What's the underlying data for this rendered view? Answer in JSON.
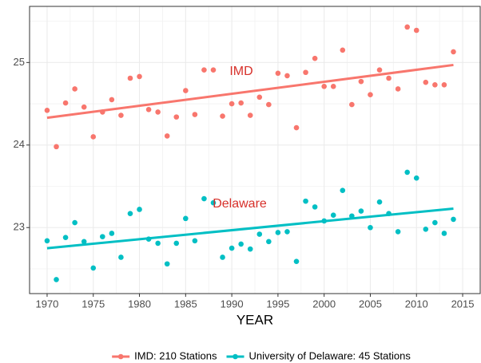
{
  "chart_data": {
    "type": "scatter",
    "xlabel": "YEAR",
    "x": [
      1970,
      1971,
      1972,
      1973,
      1974,
      1975,
      1976,
      1977,
      1978,
      1979,
      1980,
      1981,
      1982,
      1983,
      1984,
      1985,
      1986,
      1987,
      1988,
      1989,
      1990,
      1991,
      1992,
      1993,
      1994,
      1995,
      1996,
      1997,
      1998,
      1999,
      2000,
      2001,
      2002,
      2003,
      2004,
      2005,
      2006,
      2007,
      2008,
      2009,
      2010,
      2011,
      2012,
      2013,
      2014
    ],
    "series": [
      {
        "name": "IMD: 210 Stations",
        "color": "#f8766d",
        "values": [
          24.42,
          23.98,
          24.51,
          24.68,
          24.46,
          24.1,
          24.4,
          24.55,
          24.36,
          24.81,
          24.83,
          24.43,
          24.4,
          24.11,
          24.34,
          24.66,
          24.37,
          24.91,
          24.91,
          24.35,
          24.5,
          24.51,
          24.36,
          24.58,
          24.49,
          24.87,
          24.84,
          24.21,
          24.88,
          25.05,
          24.71,
          24.71,
          25.15,
          24.49,
          24.77,
          24.61,
          24.91,
          24.81,
          24.68,
          25.43,
          25.39,
          24.76,
          24.73,
          24.73,
          25.13
        ],
        "trend": {
          "x": [
            1970,
            2014
          ],
          "values": [
            24.33,
            24.97
          ]
        }
      },
      {
        "name": "University of Delaware: 45 Stations",
        "color": "#00bfc4",
        "values": [
          22.84,
          22.37,
          22.88,
          23.06,
          22.83,
          22.51,
          22.89,
          22.93,
          22.64,
          23.17,
          23.22,
          22.86,
          22.81,
          22.56,
          22.81,
          23.11,
          22.84,
          23.35,
          23.3,
          22.64,
          22.75,
          22.8,
          22.74,
          22.92,
          22.83,
          22.94,
          22.95,
          22.59,
          23.32,
          23.25,
          23.08,
          23.15,
          23.45,
          23.14,
          23.2,
          23.0,
          23.31,
          23.17,
          22.95,
          23.67,
          23.6,
          22.98,
          23.06,
          22.93,
          23.1
        ],
        "trend": {
          "x": [
            1970,
            2014
          ],
          "values": [
            22.75,
            23.23
          ]
        }
      }
    ],
    "annotations": [
      "IMD",
      "Delaware"
    ],
    "annotation_color": "#d7302a",
    "xlim": [
      1968.1,
      2016.9
    ],
    "ylim": [
      22.2,
      25.68
    ],
    "xticks": [
      1970,
      1975,
      1980,
      1985,
      1990,
      1995,
      2000,
      2005,
      2010,
      2015
    ],
    "yticks": [
      23,
      24,
      25
    ],
    "grid": true,
    "legend": "bottom"
  }
}
